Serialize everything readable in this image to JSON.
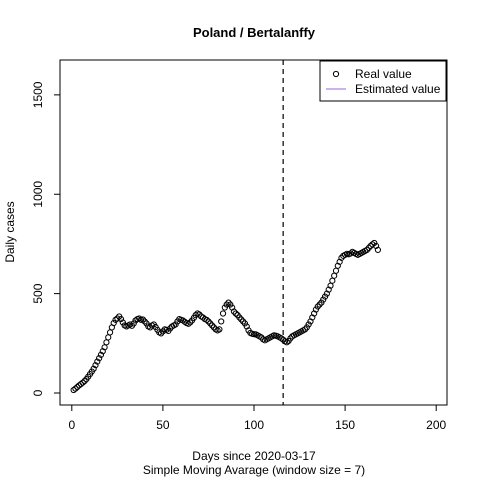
{
  "chart_data": {
    "type": "scatter",
    "title": "Poland / Bertalanffy",
    "xlabel": "Days since 2020-03-17",
    "xlabel_sub": "Simple Moving Avarage (window size = 7)",
    "ylabel": "Daily cases",
    "xlim": [
      0,
      200
    ],
    "ylim": [
      0,
      1600
    ],
    "x_ticks": [
      0,
      50,
      100,
      150,
      200
    ],
    "y_ticks": [
      0,
      500,
      1000,
      1500
    ],
    "vertical_line_x": 116,
    "legend_position": "top-right",
    "legend": [
      {
        "label": "Real value",
        "marker": "circle",
        "color": "#000000"
      },
      {
        "label": "Estimated value",
        "marker": "line",
        "color": "#9966cc"
      }
    ],
    "series": [
      {
        "name": "Real value",
        "x": [
          1,
          2,
          3,
          4,
          5,
          6,
          7,
          8,
          9,
          10,
          11,
          12,
          13,
          14,
          15,
          16,
          17,
          18,
          19,
          20,
          21,
          22,
          23,
          24,
          25,
          26,
          27,
          28,
          29,
          30,
          31,
          32,
          33,
          34,
          35,
          36,
          37,
          38,
          39,
          40,
          41,
          42,
          43,
          44,
          45,
          46,
          47,
          48,
          49,
          50,
          51,
          52,
          53,
          54,
          55,
          56,
          57,
          58,
          59,
          60,
          61,
          62,
          63,
          64,
          65,
          66,
          67,
          68,
          69,
          70,
          71,
          72,
          73,
          74,
          75,
          76,
          77,
          78,
          79,
          80,
          81,
          82,
          83,
          84,
          85,
          86,
          87,
          88,
          89,
          90,
          91,
          92,
          93,
          94,
          95,
          96,
          97,
          98,
          99,
          100,
          101,
          102,
          103,
          104,
          105,
          106,
          107,
          108,
          109,
          110,
          111,
          112,
          113,
          114,
          115,
          116,
          117,
          118,
          119,
          120,
          121,
          122,
          123,
          124,
          125,
          126,
          127,
          128,
          129,
          130,
          131,
          132,
          133,
          134,
          135,
          136,
          137,
          138,
          139,
          140,
          141,
          142,
          143,
          144,
          145,
          146,
          147,
          148,
          149,
          150,
          151,
          152,
          153,
          154,
          155,
          156,
          157,
          158,
          159,
          160,
          161,
          162,
          163,
          164,
          165,
          166,
          167,
          168
        ],
        "y": [
          15,
          22,
          30,
          38,
          45,
          52,
          60,
          70,
          82,
          95,
          108,
          122,
          140,
          158,
          175,
          192,
          210,
          230,
          255,
          280,
          305,
          330,
          352,
          368,
          375,
          385,
          372,
          355,
          340,
          335,
          340,
          345,
          338,
          350,
          365,
          372,
          375,
          368,
          370,
          360,
          350,
          335,
          330,
          340,
          345,
          332,
          318,
          305,
          300,
          310,
          320,
          318,
          312,
          325,
          335,
          340,
          345,
          360,
          372,
          368,
          365,
          358,
          352,
          348,
          355,
          365,
          378,
          392,
          400,
          395,
          385,
          380,
          372,
          368,
          360,
          350,
          340,
          330,
          320,
          315,
          320,
          360,
          400,
          430,
          445,
          455,
          445,
          430,
          410,
          400,
          392,
          380,
          370,
          360,
          350,
          335,
          315,
          302,
          298,
          296,
          295,
          290,
          285,
          280,
          270,
          265,
          270,
          275,
          280,
          285,
          290,
          288,
          285,
          280,
          275,
          268,
          260,
          255,
          262,
          275,
          285,
          290,
          295,
          300,
          305,
          310,
          315,
          320,
          330,
          345,
          360,
          380,
          400,
          420,
          435,
          445,
          455,
          470,
          485,
          500,
          520,
          540,
          565,
          590,
          615,
          640,
          660,
          680,
          690,
          695,
          700,
          698,
          702,
          710,
          705,
          700,
          695,
          700,
          705,
          710,
          715,
          720,
          730,
          740,
          748,
          755,
          740,
          720
        ]
      }
    ]
  }
}
